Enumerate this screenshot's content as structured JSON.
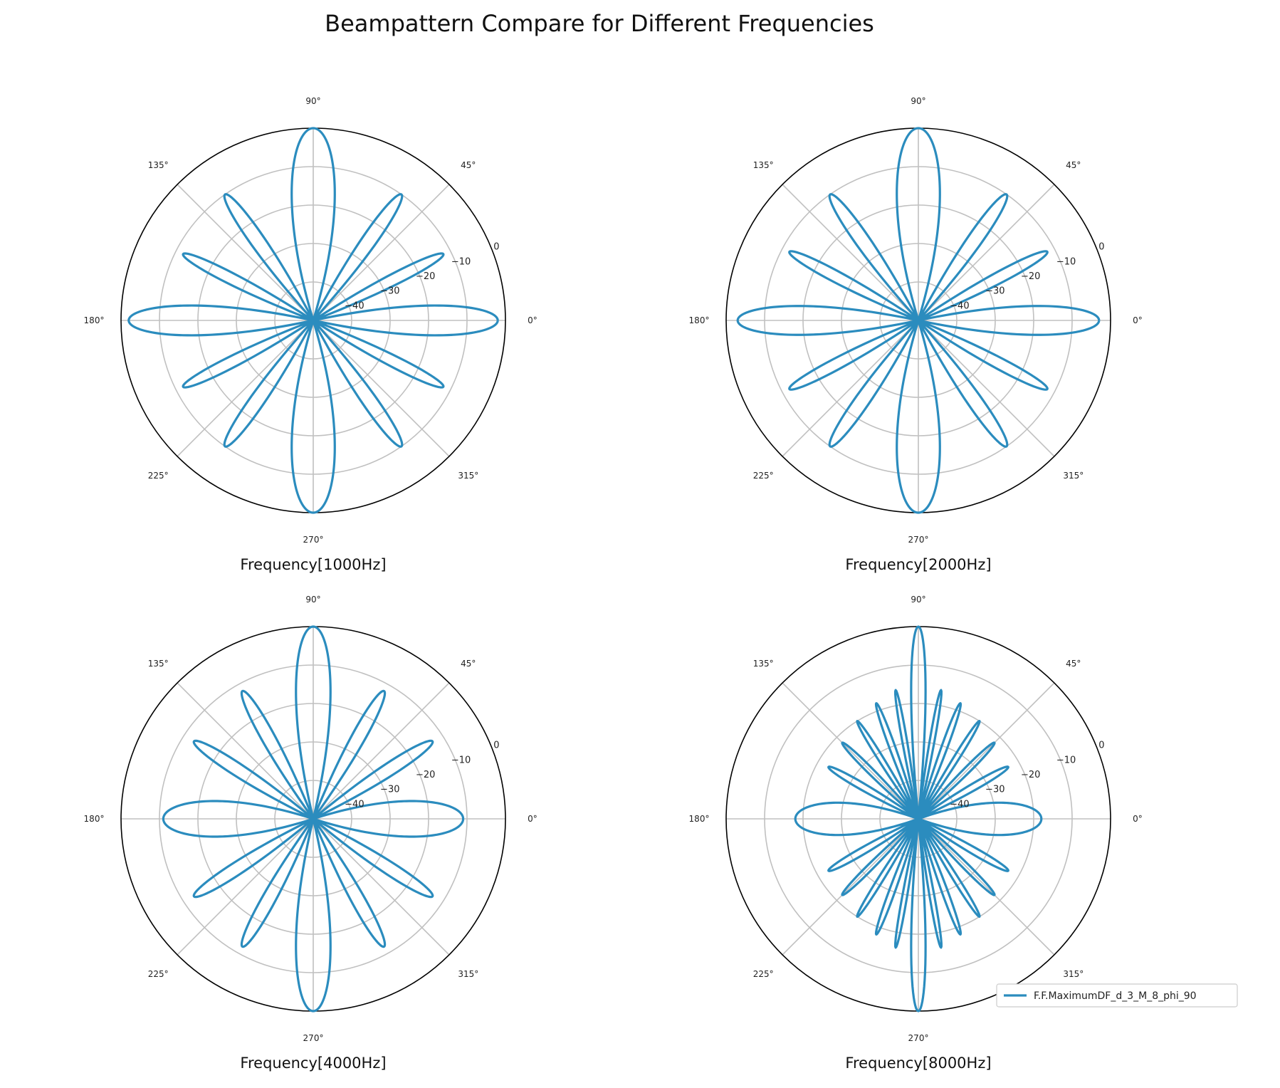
{
  "figure": {
    "title": "Beampattern Compare for Different Frequencies",
    "legend_label": "F.F.MaximumDF_d_3_M_8_phi_90",
    "legend_location": "lower-right",
    "line_color": "#2b8cbe",
    "grid_color": "#c0c0c0",
    "frame_color": "#000000"
  },
  "chart_data": [
    {
      "type": "polar-line",
      "xlabel": "Frequency[1000Hz]",
      "angle_ticks": [
        "0°",
        "45°",
        "90°",
        "135°",
        "180°",
        "225°",
        "270°",
        "315°"
      ],
      "radial_ticks": [
        "−40",
        "−30",
        "−20",
        "−10",
        "0"
      ],
      "rlim": [
        -50,
        0
      ],
      "grid": true,
      "series": [
        {
          "name": "F.F.MaximumDF_d_3_M_8_phi_90",
          "lobes": [
            {
              "center_deg": 0,
              "peak_db": -2,
              "half_width_deg": 11
            },
            {
              "center_deg": 27,
              "peak_db": -12,
              "half_width_deg": 6
            },
            {
              "center_deg": 55,
              "peak_db": -10,
              "half_width_deg": 7
            },
            {
              "center_deg": 90,
              "peak_db": 0,
              "half_width_deg": 15
            }
          ],
          "floor_db": -50
        }
      ]
    },
    {
      "type": "polar-line",
      "xlabel": "Frequency[2000Hz]",
      "angle_ticks": [
        "0°",
        "45°",
        "90°",
        "135°",
        "180°",
        "225°",
        "270°",
        "315°"
      ],
      "radial_ticks": [
        "−40",
        "−30",
        "−20",
        "−10",
        "0"
      ],
      "rlim": [
        -50,
        0
      ],
      "grid": true,
      "series": [
        {
          "name": "F.F.MaximumDF_d_3_M_8_phi_90",
          "lobes": [
            {
              "center_deg": 0,
              "peak_db": -3,
              "half_width_deg": 11
            },
            {
              "center_deg": 28,
              "peak_db": -12,
              "half_width_deg": 6
            },
            {
              "center_deg": 55,
              "peak_db": -10,
              "half_width_deg": 7
            },
            {
              "center_deg": 90,
              "peak_db": 0,
              "half_width_deg": 15
            }
          ],
          "floor_db": -50
        }
      ]
    },
    {
      "type": "polar-line",
      "xlabel": "Frequency[4000Hz]",
      "angle_ticks": [
        "0°",
        "45°",
        "90°",
        "135°",
        "180°",
        "225°",
        "270°",
        "315°"
      ],
      "radial_ticks": [
        "−40",
        "−30",
        "−20",
        "−10",
        "0"
      ],
      "rlim": [
        -50,
        0
      ],
      "grid": true,
      "series": [
        {
          "name": "F.F.MaximumDF_d_3_M_8_phi_90",
          "lobes": [
            {
              "center_deg": 0,
              "peak_db": -11,
              "half_width_deg": 18
            },
            {
              "center_deg": 33,
              "peak_db": -13,
              "half_width_deg": 7
            },
            {
              "center_deg": 61,
              "peak_db": -12,
              "half_width_deg": 7
            },
            {
              "center_deg": 90,
              "peak_db": 0,
              "half_width_deg": 12
            }
          ],
          "floor_db": -50
        }
      ]
    },
    {
      "type": "polar-line",
      "xlabel": "Frequency[8000Hz]",
      "angle_ticks": [
        "0°",
        "45°",
        "90°",
        "135°",
        "180°",
        "225°",
        "270°",
        "315°"
      ],
      "radial_ticks": [
        "−40",
        "−30",
        "−20",
        "−10",
        "0"
      ],
      "rlim": [
        -50,
        0
      ],
      "grid": true,
      "series": [
        {
          "name": "F.F.MaximumDF_d_3_M_8_phi_90",
          "lobes": [
            {
              "center_deg": 0,
              "peak_db": -18,
              "half_width_deg": 22
            },
            {
              "center_deg": 30,
              "peak_db": -23,
              "half_width_deg": 6
            },
            {
              "center_deg": 45,
              "peak_db": -22,
              "half_width_deg": 5
            },
            {
              "center_deg": 58,
              "peak_db": -20,
              "half_width_deg": 4
            },
            {
              "center_deg": 70,
              "peak_db": -18,
              "half_width_deg": 4
            },
            {
              "center_deg": 80,
              "peak_db": -16,
              "half_width_deg": 3
            },
            {
              "center_deg": 90,
              "peak_db": 0,
              "half_width_deg": 5
            }
          ],
          "floor_db": -50
        }
      ]
    }
  ]
}
